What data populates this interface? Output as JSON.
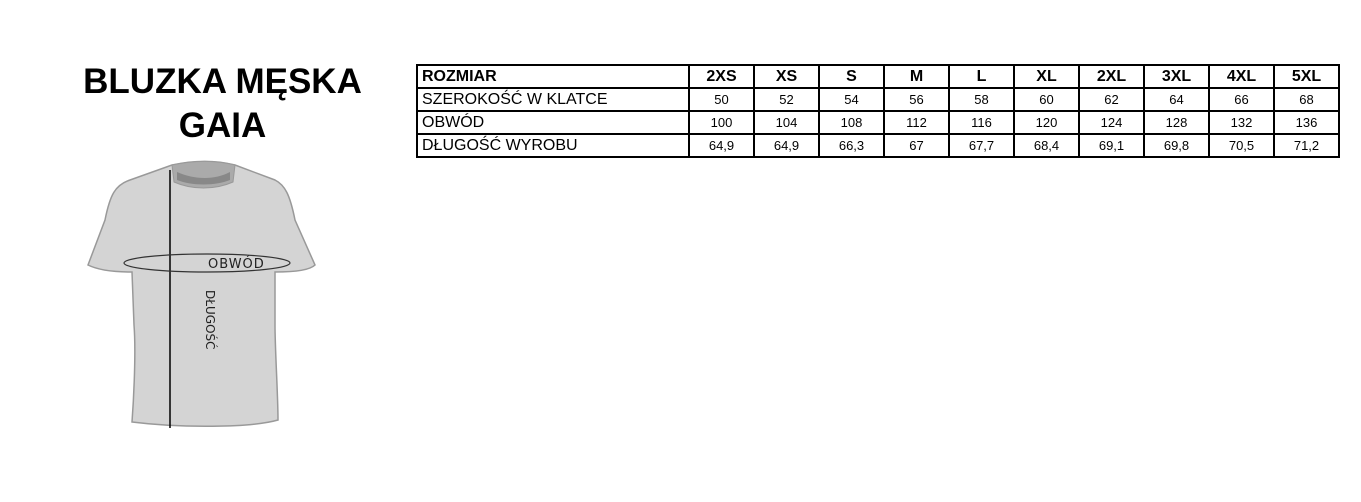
{
  "title": {
    "line1": "BLUZKA MĘSKA",
    "line2": "GAIA"
  },
  "table": {
    "header": {
      "label": "ROZMIAR",
      "sizes": [
        "2XS",
        "XS",
        "S",
        "M",
        "L",
        "XL",
        "2XL",
        "3XL",
        "4XL",
        "5XL"
      ]
    },
    "rows": [
      {
        "label": "SZEROKOŚĆ W KLATCE",
        "values": [
          "50",
          "52",
          "54",
          "56",
          "58",
          "60",
          "62",
          "64",
          "66",
          "68"
        ]
      },
      {
        "label": "OBWÓD",
        "values": [
          "100",
          "104",
          "108",
          "112",
          "116",
          "120",
          "124",
          "128",
          "132",
          "136"
        ]
      },
      {
        "label": "DŁUGOŚĆ WYROBU",
        "values": [
          "64,9",
          "64,9",
          "66,3",
          "67",
          "67,7",
          "68,4",
          "69,1",
          "69,8",
          "70,5",
          "71,2"
        ]
      }
    ]
  },
  "diagram": {
    "girth_label": "OBWÓD",
    "length_label": "DŁUGOŚĆ",
    "shirt_color": "#d4d4d4"
  }
}
